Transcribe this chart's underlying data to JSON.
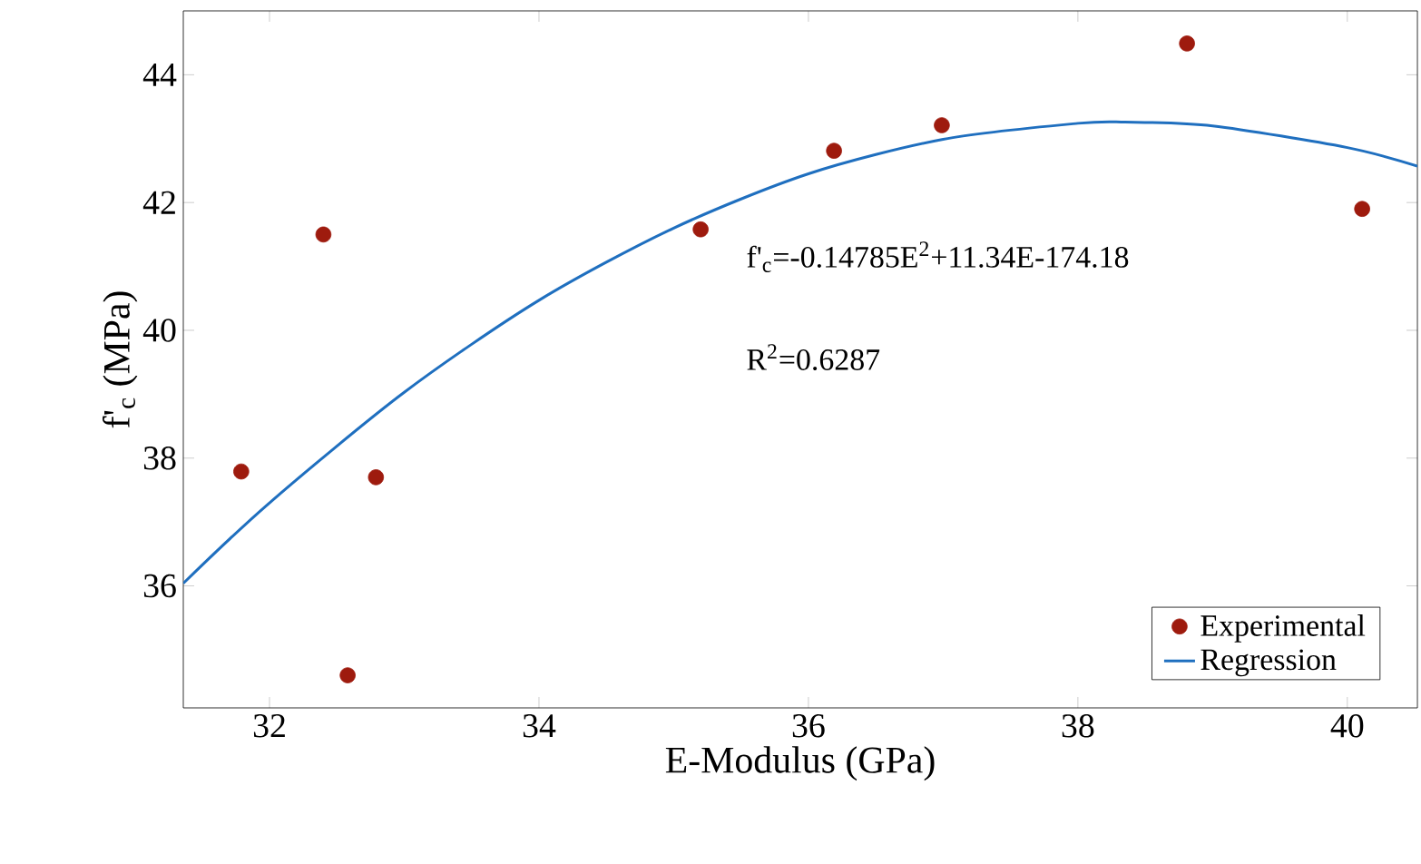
{
  "chart_data": {
    "type": "scatter",
    "xlabel": "E-Modulus (GPa)",
    "ylabel": "f'$_{c}$ (MPa)",
    "xlim": [
      31.36,
      40.52
    ],
    "ylim": [
      34.09,
      45
    ],
    "xticks": [
      32,
      34,
      36,
      38,
      40
    ],
    "yticks": [
      36,
      38,
      40,
      42,
      44
    ],
    "grid": false,
    "legend": "bottom right",
    "annotations": [
      "f'$_{c}$=-0.14785E$^{2}$+11.34E-174.18",
      "R$^{2}$=0.6287"
    ],
    "series": [
      {
        "name": "Experimental",
        "type": "scatter",
        "marker": "circle",
        "color": "#9e1b0e",
        "x": [
          31.79,
          32.4,
          32.58,
          32.79,
          35.2,
          36.19,
          36.99,
          38.81,
          40.11
        ],
        "values": [
          37.79,
          41.5,
          34.6,
          37.7,
          41.58,
          42.81,
          43.21,
          44.49,
          41.9
        ]
      },
      {
        "name": "Regression",
        "type": "line",
        "marker": "none",
        "color": "#1f6fbf",
        "line_style": "solid",
        "x": [
          31.36,
          32,
          33,
          34,
          35,
          36,
          37,
          38,
          38.35,
          39,
          40,
          40.52
        ],
        "values": [
          36.04,
          37.3,
          39.03,
          40.47,
          41.6,
          42.45,
          42.99,
          43.24,
          43.26,
          43.2,
          42.86,
          42.57
        ]
      }
    ]
  }
}
